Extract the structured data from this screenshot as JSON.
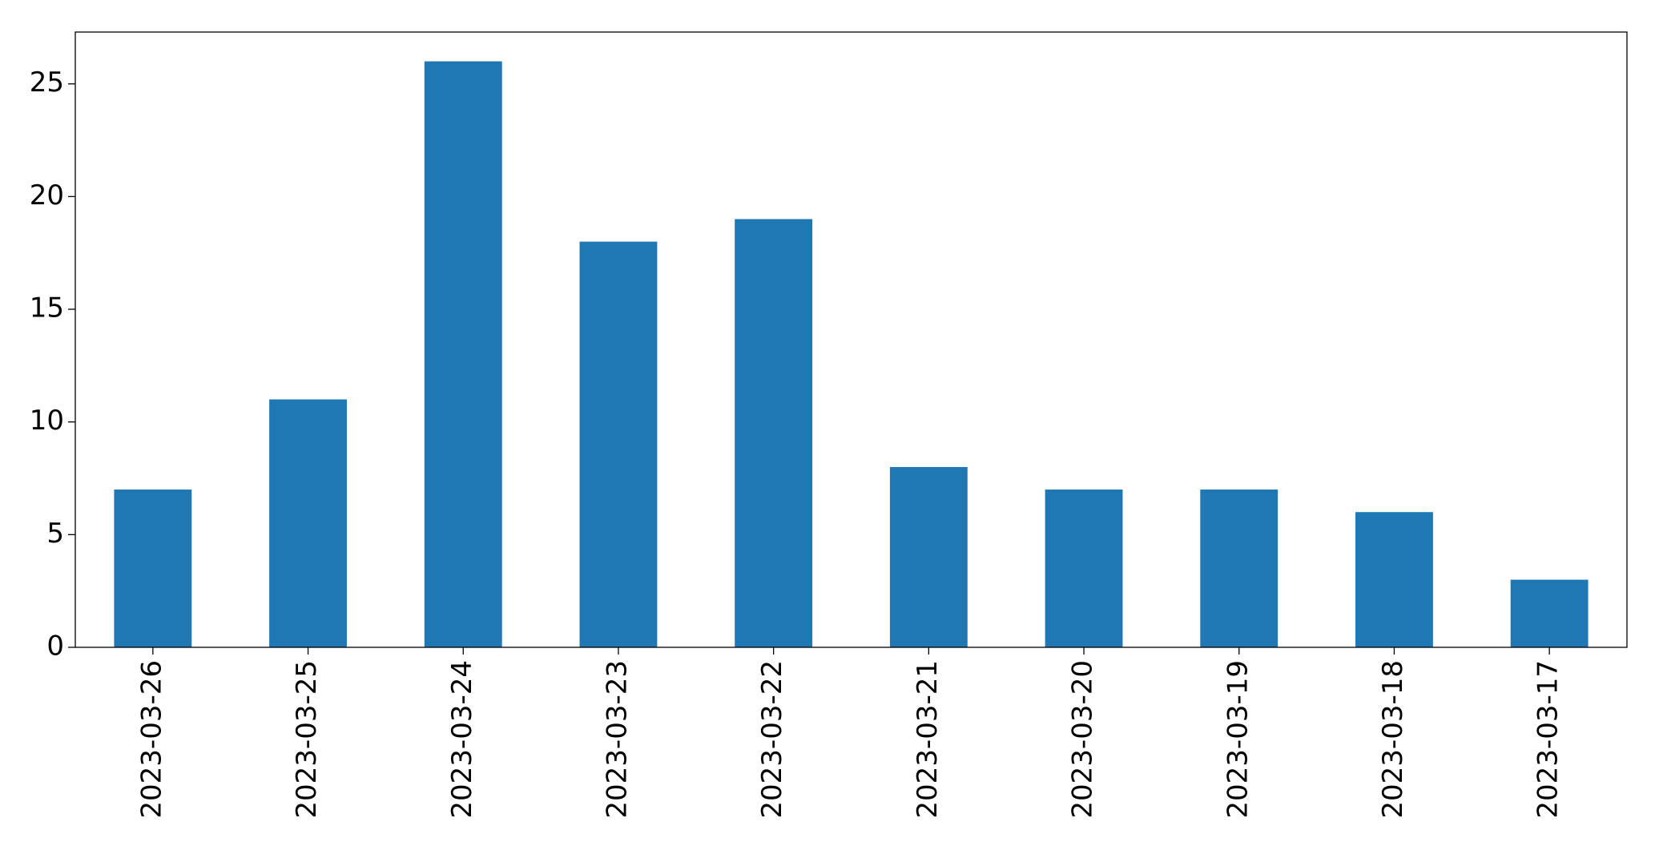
{
  "chart_data": {
    "type": "bar",
    "categories": [
      "2023-03-26",
      "2023-03-25",
      "2023-03-24",
      "2023-03-23",
      "2023-03-22",
      "2023-03-21",
      "2023-03-20",
      "2023-03-19",
      "2023-03-18",
      "2023-03-17"
    ],
    "values": [
      7,
      11,
      26,
      18,
      19,
      8,
      7,
      7,
      6,
      3
    ],
    "color": "#1f77b4",
    "ylim": [
      0,
      27.3
    ],
    "yticks": [
      0,
      5,
      10,
      15,
      20,
      25
    ],
    "grid": false
  }
}
